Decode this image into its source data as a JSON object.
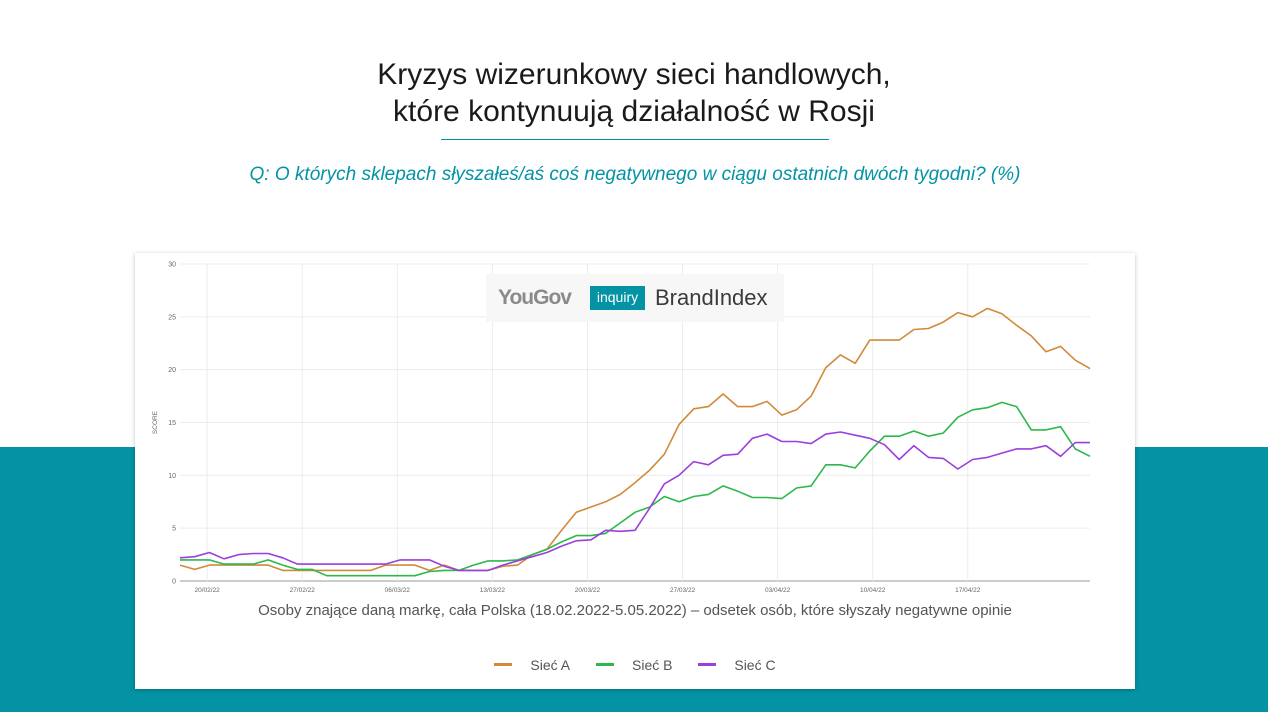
{
  "page": {
    "title_line1": "Kryzys wizerunkowy sieci handlowych,",
    "title_line2": "które kontynuują działalność w Rosji",
    "question": "Q: O których sklepach słyszałeś/aś coś  negatywnego w ciągu ostatnich dwóch tygodni? (%)"
  },
  "logo": {
    "yougov": "YouGov",
    "inquiry": "inquiry",
    "brandindex": "BrandIndex"
  },
  "colors": {
    "teal": "#0393a5",
    "siec_a": "#d08a3a",
    "siec_b": "#2db84b",
    "siec_c": "#9b3fdc"
  },
  "chart_data": {
    "type": "line",
    "title": "",
    "xlabel": "Osoby znające daną markę, cała Polska (18.02.2022-5.05.2022) – odsetek osób, które słyszały negatywne opinie",
    "ylabel": "SCORE",
    "ylim": [
      0,
      30
    ],
    "yticks": [
      0,
      5,
      10,
      15,
      20,
      25,
      30
    ],
    "x_start": "18/02/22",
    "x_end": "26/04/22",
    "xticks": [
      "20/02/22",
      "27/02/22",
      "06/03/22",
      "13/03/22",
      "20/03/22",
      "27/03/22",
      "03/04/22",
      "10/04/22",
      "17/04/22"
    ],
    "grid": true,
    "legend_position": "bottom",
    "series": [
      {
        "name": "Sieć A",
        "color": "#d08a3a",
        "values": [
          1.5,
          1.1,
          1.5,
          1.5,
          1.5,
          1.5,
          1.5,
          1.0,
          1.0,
          1.0,
          1.0,
          1.0,
          1.0,
          1.0,
          1.5,
          1.5,
          1.5,
          1.0,
          1.5,
          1.0,
          1.0,
          1.0,
          1.4,
          1.5,
          2.5,
          3.0,
          4.8,
          6.5,
          7.0,
          7.5,
          8.2,
          9.3,
          10.5,
          12.0,
          14.8,
          16.3,
          16.5,
          17.7,
          16.5,
          16.5,
          17.0,
          15.7,
          16.2,
          17.5,
          20.2,
          21.4,
          20.6,
          22.8,
          22.8,
          22.8,
          23.8,
          23.9,
          24.5,
          25.4,
          25.0,
          25.8,
          25.3,
          24.2,
          23.2,
          21.7,
          22.2,
          20.9,
          20.1
        ]
      },
      {
        "name": "Sieć B",
        "color": "#2db84b",
        "values": [
          2.0,
          2.0,
          2.0,
          1.6,
          1.6,
          1.6,
          2.0,
          1.5,
          1.1,
          1.1,
          0.5,
          0.5,
          0.5,
          0.5,
          0.5,
          0.5,
          0.5,
          0.9,
          1.0,
          1.0,
          1.5,
          1.9,
          1.9,
          2.0,
          2.5,
          3.0,
          3.7,
          4.3,
          4.3,
          4.5,
          5.5,
          6.5,
          7.0,
          8.0,
          7.5,
          8.0,
          8.2,
          9.0,
          8.5,
          7.9,
          7.9,
          7.8,
          8.8,
          9.0,
          11.0,
          11.0,
          10.7,
          12.3,
          13.7,
          13.7,
          14.2,
          13.7,
          14.0,
          15.5,
          16.2,
          16.4,
          16.9,
          16.5,
          14.3,
          14.3,
          14.6,
          12.5,
          11.8
        ]
      },
      {
        "name": "Sieć C",
        "color": "#9b3fdc",
        "values": [
          2.2,
          2.3,
          2.7,
          2.1,
          2.5,
          2.6,
          2.6,
          2.2,
          1.6,
          1.6,
          1.6,
          1.6,
          1.6,
          1.6,
          1.6,
          2.0,
          2.0,
          2.0,
          1.4,
          1.0,
          1.0,
          1.0,
          1.5,
          1.9,
          2.3,
          2.7,
          3.3,
          3.8,
          3.9,
          4.8,
          4.7,
          4.8,
          6.9,
          9.2,
          10.0,
          11.3,
          11.0,
          11.9,
          12.0,
          13.5,
          13.9,
          13.2,
          13.2,
          13.0,
          13.9,
          14.1,
          13.8,
          13.5,
          12.9,
          11.5,
          12.8,
          11.7,
          11.6,
          10.6,
          11.5,
          11.7,
          12.1,
          12.5,
          12.5,
          12.8,
          11.8,
          13.1,
          13.1
        ]
      }
    ]
  }
}
